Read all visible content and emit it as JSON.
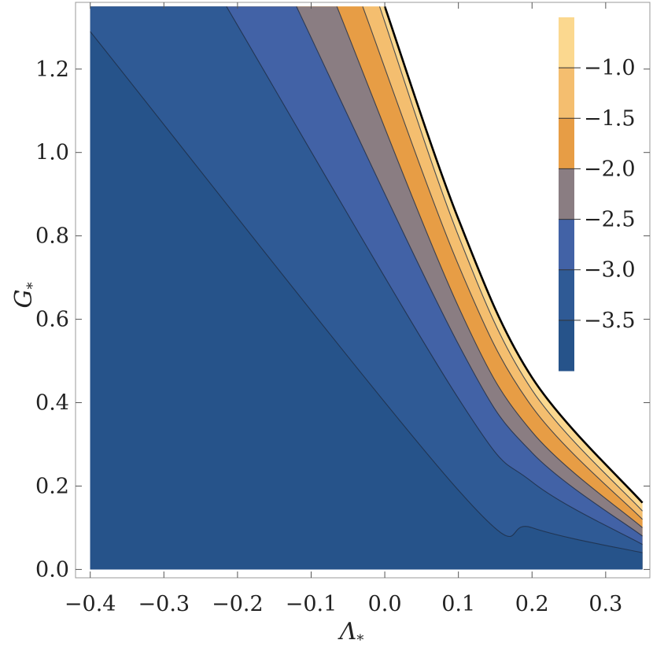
{
  "chart_data": {
    "type": "contour",
    "xlabel": "Λ",
    "xlabel_subscript": "*",
    "ylabel": "G",
    "ylabel_subscript": "*",
    "xlim": [
      -0.42,
      0.36
    ],
    "ylim": [
      -0.02,
      1.36
    ],
    "x_ticks": [
      -0.4,
      -0.3,
      -0.2,
      -0.1,
      0.0,
      0.1,
      0.2,
      0.3
    ],
    "x_tick_labels": [
      "−0.4",
      "−0.3",
      "−0.2",
      "−0.1",
      "0.0",
      "0.1",
      "0.2",
      "0.3"
    ],
    "y_ticks": [
      0.0,
      0.2,
      0.4,
      0.6,
      0.8,
      1.0,
      1.2
    ],
    "y_tick_labels": [
      "0.0",
      "0.2",
      "0.4",
      "0.6",
      "0.8",
      "1.0",
      "1.2"
    ],
    "region_x_range": [
      -0.4,
      0.35
    ],
    "region_y_range": [
      0.0,
      1.35
    ],
    "boundary_curve": {
      "description": "right edge of filled region",
      "points": [
        [
          0.0,
          1.35
        ],
        [
          0.1,
          0.84
        ],
        [
          0.2,
          0.46
        ],
        [
          0.35,
          0.16
        ]
      ]
    },
    "contour_levels": [
      {
        "level": -1.0,
        "points": [
          [
            -0.007,
            1.35
          ],
          [
            0.1,
            0.8
          ],
          [
            0.2,
            0.43
          ],
          [
            0.35,
            0.14
          ]
        ]
      },
      {
        "level": -1.5,
        "points": [
          [
            -0.03,
            1.35
          ],
          [
            0.1,
            0.73
          ],
          [
            0.2,
            0.39
          ],
          [
            0.35,
            0.12
          ]
        ]
      },
      {
        "level": -2.0,
        "points": [
          [
            -0.065,
            1.35
          ],
          [
            0.1,
            0.63
          ],
          [
            0.2,
            0.33
          ],
          [
            0.35,
            0.1
          ]
        ]
      },
      {
        "level": -2.5,
        "points": [
          [
            -0.12,
            1.35
          ],
          [
            0.1,
            0.54
          ],
          [
            0.2,
            0.28
          ],
          [
            0.35,
            0.08
          ]
        ]
      },
      {
        "level": -3.0,
        "points": [
          [
            -0.215,
            1.35
          ],
          [
            0.1,
            0.41
          ],
          [
            0.2,
            0.21
          ],
          [
            0.35,
            0.06
          ]
        ]
      },
      {
        "level": -3.5,
        "points": [
          [
            -0.4,
            1.29
          ],
          [
            0.1,
            0.19
          ],
          [
            0.2,
            0.1
          ],
          [
            0.35,
            0.04
          ]
        ]
      }
    ],
    "colorbar": {
      "tick_labels": [
        "−1.0",
        "−1.5",
        "−2.0",
        "−2.5",
        "−3.0",
        "−3.5"
      ],
      "levels": [
        -1.0,
        -1.5,
        -2.0,
        -2.5,
        -3.0,
        -3.5
      ],
      "band_colors": [
        "#fbd88f",
        "#f4be6f",
        "#e79d45",
        "#8a7d82",
        "#4262a6",
        "#2f5a95",
        "#26538a"
      ]
    },
    "colors": {
      "outline": "#000000",
      "contour_line": "#1e2d45",
      "frame": "#999999"
    },
    "grid": false,
    "legend_placement": "top-right"
  }
}
